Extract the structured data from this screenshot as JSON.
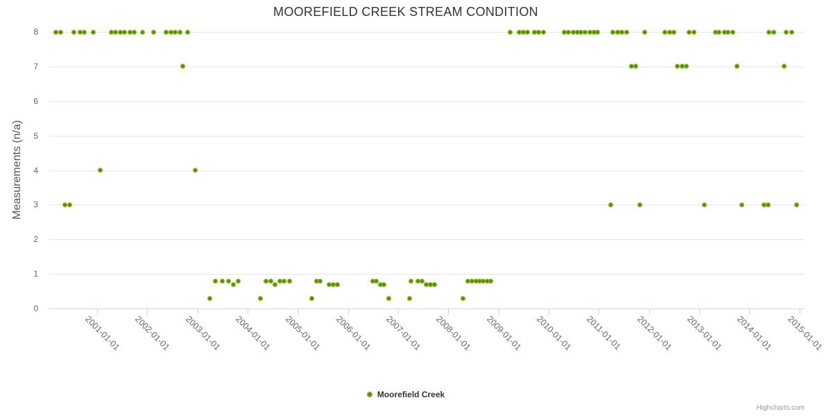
{
  "chart_data": {
    "type": "scatter",
    "title": "MOOREFIELD CREEK STREAM CONDITION",
    "xlabel": "",
    "ylabel": "Measurements (n/a)",
    "ylim": [
      0,
      8
    ],
    "grid": true,
    "legend_position": "bottom-center",
    "credits": "Highcharts.com",
    "colors": {
      "grid": "#e6e6e6",
      "axis_line": "#ccd6eb",
      "labels": "#666666",
      "title": "#333333"
    },
    "y_ticks": [
      0,
      1,
      2,
      3,
      4,
      5,
      6,
      7,
      8
    ],
    "x_tick_years": [
      2001,
      2002,
      2003,
      2004,
      2005,
      2006,
      2007,
      2008,
      2009,
      2010,
      2011,
      2012,
      2013,
      2014,
      2015
    ],
    "x_tick_labels": [
      "2001-01-01",
      "2002-01-01",
      "2003-01-01",
      "2004-01-01",
      "2005-01-01",
      "2006-01-01",
      "2007-01-01",
      "2008-01-01",
      "2009-01-01",
      "2010-01-01",
      "2011-01-01",
      "2012-01-01",
      "2013-01-01",
      "2014-01-01",
      "2015-01-01"
    ],
    "series": [
      {
        "name": "Moorefield Creek",
        "color": "#7cb40e",
        "color_dark": "#3f6c00",
        "points": [
          [
            2000.18,
            8
          ],
          [
            2000.27,
            8
          ],
          [
            2000.54,
            8
          ],
          [
            2000.66,
            8
          ],
          [
            2000.75,
            8
          ],
          [
            2000.92,
            8
          ],
          [
            2001.29,
            8
          ],
          [
            2001.37,
            8
          ],
          [
            2001.46,
            8
          ],
          [
            2001.55,
            8
          ],
          [
            2001.65,
            8
          ],
          [
            2001.74,
            8
          ],
          [
            2001.9,
            8
          ],
          [
            2002.12,
            8
          ],
          [
            2002.38,
            8
          ],
          [
            2002.47,
            8
          ],
          [
            2002.56,
            8
          ],
          [
            2002.65,
            8
          ],
          [
            2002.81,
            8
          ],
          [
            2009.24,
            8
          ],
          [
            2009.41,
            8
          ],
          [
            2009.5,
            8
          ],
          [
            2009.58,
            8
          ],
          [
            2009.72,
            8
          ],
          [
            2009.8,
            8
          ],
          [
            2009.9,
            8
          ],
          [
            2010.31,
            8
          ],
          [
            2010.4,
            8
          ],
          [
            2010.49,
            8
          ],
          [
            2010.57,
            8
          ],
          [
            2010.65,
            8
          ],
          [
            2010.73,
            8
          ],
          [
            2010.82,
            8
          ],
          [
            2010.9,
            8
          ],
          [
            2010.98,
            8
          ],
          [
            2011.28,
            8
          ],
          [
            2011.37,
            8
          ],
          [
            2011.46,
            8
          ],
          [
            2011.55,
            8
          ],
          [
            2011.91,
            8
          ],
          [
            2012.31,
            8
          ],
          [
            2012.41,
            8
          ],
          [
            2012.5,
            8
          ],
          [
            2012.8,
            8
          ],
          [
            2012.89,
            8
          ],
          [
            2013.32,
            8
          ],
          [
            2013.4,
            8
          ],
          [
            2013.51,
            8
          ],
          [
            2013.58,
            8
          ],
          [
            2013.67,
            8
          ],
          [
            2014.39,
            8
          ],
          [
            2014.48,
            8
          ],
          [
            2014.74,
            8
          ],
          [
            2014.85,
            8
          ],
          [
            2002.71,
            7
          ],
          [
            2011.65,
            7
          ],
          [
            2011.74,
            7
          ],
          [
            2012.57,
            7
          ],
          [
            2012.66,
            7
          ],
          [
            2012.74,
            7
          ],
          [
            2013.75,
            7
          ],
          [
            2014.69,
            7
          ],
          [
            2001.06,
            4
          ],
          [
            2002.95,
            4
          ],
          [
            2000.36,
            3
          ],
          [
            2000.46,
            3
          ],
          [
            2011.24,
            3
          ],
          [
            2011.82,
            3
          ],
          [
            2013.11,
            3
          ],
          [
            2013.85,
            3
          ],
          [
            2014.3,
            3
          ],
          [
            2014.37,
            3
          ],
          [
            2014.94,
            3
          ],
          [
            2003.36,
            0.8
          ],
          [
            2003.49,
            0.8
          ],
          [
            2003.62,
            0.8
          ],
          [
            2003.82,
            0.8
          ],
          [
            2004.36,
            0.8
          ],
          [
            2004.46,
            0.8
          ],
          [
            2004.64,
            0.8
          ],
          [
            2004.73,
            0.8
          ],
          [
            2004.83,
            0.8
          ],
          [
            2005.37,
            0.8
          ],
          [
            2005.45,
            0.8
          ],
          [
            2006.49,
            0.8
          ],
          [
            2006.57,
            0.8
          ],
          [
            2007.25,
            0.8
          ],
          [
            2007.39,
            0.8
          ],
          [
            2007.48,
            0.8
          ],
          [
            2008.39,
            0.8
          ],
          [
            2008.47,
            0.8
          ],
          [
            2008.55,
            0.8
          ],
          [
            2008.62,
            0.8
          ],
          [
            2008.7,
            0.8
          ],
          [
            2008.78,
            0.8
          ],
          [
            2008.85,
            0.8
          ],
          [
            2003.72,
            0.7
          ],
          [
            2004.54,
            0.7
          ],
          [
            2005.63,
            0.7
          ],
          [
            2005.71,
            0.7
          ],
          [
            2005.79,
            0.7
          ],
          [
            2006.65,
            0.7
          ],
          [
            2006.71,
            0.7
          ],
          [
            2007.56,
            0.7
          ],
          [
            2007.64,
            0.7
          ],
          [
            2007.72,
            0.7
          ],
          [
            2003.25,
            0.3
          ],
          [
            2004.26,
            0.3
          ],
          [
            2005.28,
            0.3
          ],
          [
            2006.81,
            0.3
          ],
          [
            2007.23,
            0.3
          ],
          [
            2008.29,
            0.3
          ]
        ]
      }
    ]
  }
}
